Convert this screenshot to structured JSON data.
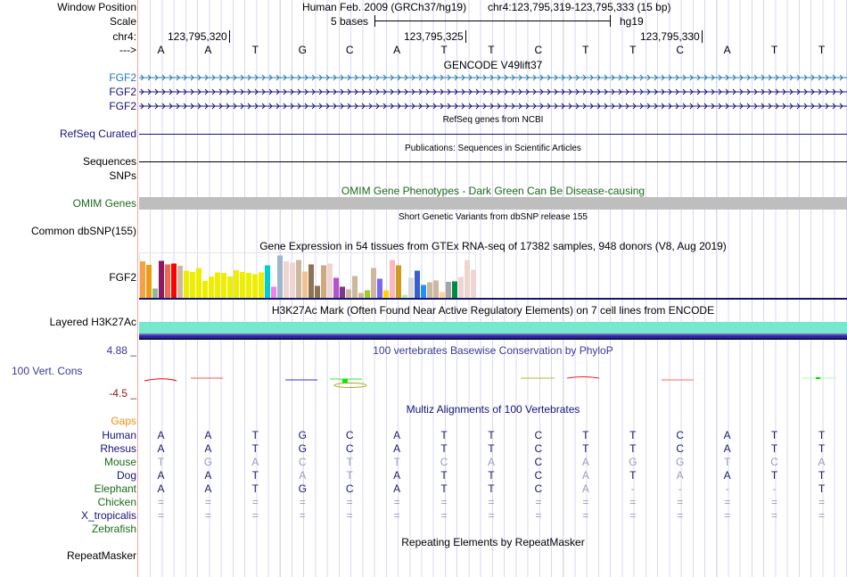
{
  "header": {
    "labels": {
      "window_position": "Window Position",
      "scale": "Scale",
      "chrom": "chr4:",
      "strand": "--->"
    },
    "assembly_title": "Human Feb. 2009 (GRCh37/hg19)",
    "position": "chr4:123,795,319-123,795,333 (15 bp)",
    "scale_label": "5 bases",
    "db": "hg19",
    "ticks": [
      "123,795,320",
      "123,795,325",
      "123,795,330"
    ],
    "sequence": [
      "A",
      "A",
      "T",
      "G",
      "C",
      "A",
      "T",
      "T",
      "C",
      "T",
      "T",
      "C",
      "A",
      "T",
      "T"
    ]
  },
  "gencode": {
    "title": "GENCODE V49lift37",
    "genes": [
      "FGF2",
      "FGF2",
      "FGF2"
    ],
    "colors": [
      "#1f78b4",
      "#14147a",
      "#14147a"
    ]
  },
  "refseq": {
    "title": "RefSeq genes from NCBI",
    "label": "RefSeq Curated"
  },
  "publications": {
    "title": "Publications: Sequences in Scientific Articles",
    "label": "Sequences",
    "label2": "SNPs"
  },
  "omim": {
    "title": "OMIM Gene Phenotypes - Dark Green Can Be Disease-causing",
    "label": "OMIM Genes"
  },
  "dbsnp": {
    "title": "Short Genetic Variants from dbSNP release 155",
    "label": "Common dbSNP(155)"
  },
  "gtex": {
    "title": "Gene Expression in 54 tissues from GTEx RNA-seq of 17382 samples, 948 donors (V8, Aug 2019)",
    "label": "FGF2"
  },
  "chart_data": {
    "type": "bar",
    "title": "Gene Expression in 54 tissues from GTEx RNA-seq of 17382 samples, 948 donors (V8, Aug 2019)",
    "ylim": [
      0,
      100
    ],
    "values": [
      82,
      74,
      21,
      83,
      75,
      77,
      72,
      61,
      58,
      67,
      38,
      48,
      57,
      56,
      48,
      62,
      58,
      56,
      53,
      57,
      73,
      25,
      95,
      82,
      79,
      85,
      59,
      75,
      27,
      73,
      77,
      45,
      25,
      19,
      49,
      11,
      17,
      67,
      43,
      17,
      85,
      73,
      7,
      45,
      61,
      29,
      35,
      39,
      13,
      36,
      37,
      47,
      85,
      63
    ],
    "colors": [
      "#f6a049",
      "#eb9d16",
      "#8fbc8f",
      "#8b1a61",
      "#ee6a50",
      "#ff0000",
      "#cdb79e",
      "#eeee00",
      "#eeee00",
      "#eeee00",
      "#eeee00",
      "#eeee00",
      "#eeee00",
      "#eeee00",
      "#eeee00",
      "#eeee00",
      "#eeee00",
      "#eeee00",
      "#eeee00",
      "#eeee00",
      "#00ced1",
      "#ee82ee",
      "#9fb6cd",
      "#eed5d2",
      "#eed5d2",
      "#cdb79e",
      "#eec591",
      "#8b7355",
      "#8b7355",
      "#cdaa7d",
      "#eed5d2",
      "#b452cd",
      "#7a378b",
      "#cdb79e",
      "#cdb79e",
      "#cdb79e",
      "#9acd32",
      "#cdb79e",
      "#7b68ee",
      "#ffd700",
      "#ffb6c1",
      "#cd9b1d",
      "#b4eeb4",
      "#d9d9d9",
      "#3a5fcd",
      "#1e90ff",
      "#cdb79e",
      "#cdb79e",
      "#ffd39b",
      "#a6a6a6",
      "#008b45",
      "#eed5d2",
      "#eed5d2",
      "#eed5d2"
    ]
  },
  "h3k27ac": {
    "title": "H3K27Ac Mark (Often Found Near Active Regulatory Elements) on 7 cell lines from ENCODE",
    "label": "Layered H3K27Ac"
  },
  "phylop": {
    "title": "100 vertebrates Basewise Conservation by PhyloP",
    "label": "100 Vert. Cons",
    "max": "4.88 _",
    "min": "-4.5 _"
  },
  "multiz": {
    "title": "Multiz Alignments of 100 Vertebrates",
    "gaps_label": "Gaps",
    "species": [
      {
        "name": "Human",
        "color": "#14147a",
        "seq": [
          "A",
          "A",
          "T",
          "G",
          "C",
          "A",
          "T",
          "T",
          "C",
          "T",
          "T",
          "C",
          "A",
          "T",
          "T"
        ]
      },
      {
        "name": "Rhesus",
        "color": "#14147a",
        "seq": [
          "A",
          "A",
          "T",
          "G",
          "C",
          "A",
          "T",
          "T",
          "C",
          "T",
          "T",
          "C",
          "A",
          "T",
          "T"
        ]
      },
      {
        "name": "Mouse",
        "color": "#1a6b1a",
        "seq": [
          "T",
          "G",
          "A",
          "C",
          "T",
          "T",
          "C",
          "A",
          "C",
          "A",
          "G",
          "G",
          "T",
          "C",
          "A"
        ]
      },
      {
        "name": "Dog",
        "color": "#14147a",
        "seq": [
          "A",
          "A",
          "T",
          "A",
          "T",
          "A",
          "T",
          "T",
          "C",
          "A",
          "T",
          "A",
          "A",
          "T",
          "T"
        ]
      },
      {
        "name": "Elephant",
        "color": "#1a6b1a",
        "seq": [
          "A",
          "A",
          "T",
          "G",
          "C",
          "A",
          "T",
          "T",
          "C",
          "A",
          "-",
          "-",
          "-",
          "-",
          "T"
        ]
      },
      {
        "name": "Chicken",
        "color": "#1a6b1a",
        "seq": [
          "=",
          "=",
          "=",
          "=",
          "=",
          "=",
          "=",
          "=",
          "=",
          "=",
          "=",
          "=",
          "=",
          "=",
          "="
        ]
      },
      {
        "name": "X_tropicalis",
        "color": "#14147a",
        "seq": [
          "=",
          "=",
          "=",
          "=",
          "=",
          "=",
          "=",
          "=",
          "=",
          "=",
          "=",
          "=",
          "=",
          "=",
          "="
        ]
      },
      {
        "name": "Zebrafish",
        "color": "#1a6b1a",
        "seq": []
      }
    ]
  },
  "repeatmasker": {
    "title": "Repeating Elements by RepeatMasker",
    "label": "RepeatMasker"
  }
}
